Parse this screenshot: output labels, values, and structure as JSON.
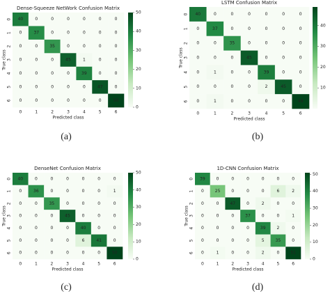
{
  "chart_data": [
    {
      "type": "heatmap",
      "title": "Dense-Squeeze NetWork Confusion Matrix",
      "x_label": "Predicted class",
      "y_label": "True class",
      "caption": "(a)",
      "x_categories": [
        "0",
        "1",
        "2",
        "3",
        "4",
        "5",
        "6"
      ],
      "y_categories": [
        "0",
        "1",
        "2",
        "3",
        "4",
        "5",
        "6"
      ],
      "values": [
        [
          40,
          0,
          0,
          0,
          0,
          0,
          0
        ],
        [
          0,
          37,
          0,
          0,
          0,
          0,
          0
        ],
        [
          0,
          0,
          35,
          0,
          0,
          0,
          0
        ],
        [
          0,
          0,
          0,
          45,
          1,
          0,
          0
        ],
        [
          0,
          0,
          0,
          0,
          39,
          0,
          0
        ],
        [
          0,
          0,
          0,
          0,
          0,
          47,
          0
        ],
        [
          0,
          0,
          0,
          0,
          0,
          0,
          50
        ]
      ],
      "zlim": [
        0,
        50
      ],
      "zticks": [
        0,
        10,
        20,
        30,
        40,
        50
      ],
      "colormap": [
        "#f7fcf5",
        "#c7e9c0",
        "#74c476",
        "#238b45",
        "#00441b"
      ]
    },
    {
      "type": "heatmap",
      "title": "LSTM Confusion Matrix",
      "x_label": "Predicted class",
      "y_label": "True class",
      "caption": "(b)",
      "x_categories": [
        "0",
        "1",
        "2",
        "3",
        "4",
        "5",
        "6"
      ],
      "y_categories": [
        "0",
        "1",
        "2",
        "3",
        "4",
        "5",
        "6"
      ],
      "values": [
        [
          40,
          0,
          0,
          0,
          0,
          0,
          0
        ],
        [
          0,
          37,
          0,
          0,
          0,
          0,
          0
        ],
        [
          0,
          0,
          35,
          0,
          0,
          0,
          0
        ],
        [
          0,
          0,
          0,
          45,
          0,
          0,
          0
        ],
        [
          0,
          1,
          0,
          0,
          39,
          0,
          0
        ],
        [
          0,
          0,
          0,
          0,
          2,
          45,
          0
        ],
        [
          0,
          1,
          0,
          0,
          0,
          0,
          49
        ]
      ],
      "zlim": [
        0,
        49
      ],
      "zticks": [
        10,
        20,
        30,
        40
      ],
      "colormap": [
        "#f7fcf5",
        "#c7e9c0",
        "#74c476",
        "#238b45",
        "#00441b"
      ]
    },
    {
      "type": "heatmap",
      "title": "DenseNet Confusion Matrix",
      "x_label": "Predicted class",
      "y_label": "True class",
      "caption": "(c)",
      "x_categories": [
        "0",
        "1",
        "2",
        "3",
        "4",
        "5",
        "6"
      ],
      "y_categories": [
        "0",
        "1",
        "2",
        "3",
        "4",
        "5",
        "6"
      ],
      "values": [
        [
          40,
          0,
          0,
          0,
          0,
          0,
          0
        ],
        [
          0,
          36,
          0,
          0,
          0,
          0,
          1
        ],
        [
          0,
          0,
          35,
          0,
          0,
          0,
          0
        ],
        [
          0,
          0,
          0,
          45,
          0,
          0,
          0
        ],
        [
          0,
          0,
          0,
          0,
          40,
          0,
          0
        ],
        [
          0,
          0,
          0,
          0,
          6,
          41,
          0
        ],
        [
          0,
          0,
          0,
          0,
          0,
          0,
          50
        ]
      ],
      "zlim": [
        0,
        50
      ],
      "zticks": [
        0,
        10,
        20,
        30,
        40,
        50
      ],
      "colormap": [
        "#f7fcf5",
        "#c7e9c0",
        "#74c476",
        "#238b45",
        "#00441b"
      ]
    },
    {
      "type": "heatmap",
      "title": "1D-CNN Confusion Matrix",
      "x_label": "Predicted class",
      "y_label": "True class",
      "caption": "(d)",
      "x_categories": [
        "0",
        "1",
        "2",
        "3",
        "4",
        "5",
        "6"
      ],
      "y_categories": [
        "0",
        "1",
        "2",
        "3",
        "4",
        "5",
        "6"
      ],
      "values": [
        [
          39,
          0,
          0,
          0,
          0,
          0,
          0
        ],
        [
          0,
          25,
          0,
          0,
          0,
          6,
          2
        ],
        [
          0,
          0,
          47,
          0,
          2,
          0,
          0
        ],
        [
          0,
          0,
          0,
          37,
          0,
          0,
          1
        ],
        [
          0,
          0,
          0,
          0,
          39,
          2,
          0
        ],
        [
          0,
          0,
          0,
          0,
          5,
          35,
          0
        ],
        [
          0,
          1,
          0,
          0,
          2,
          0,
          51
        ]
      ],
      "zlim": [
        0,
        51
      ],
      "zticks": [
        0,
        10,
        20,
        30,
        40,
        50
      ],
      "colormap": [
        "#f7fcf5",
        "#c7e9c0",
        "#74c476",
        "#238b45",
        "#00441b"
      ]
    }
  ]
}
